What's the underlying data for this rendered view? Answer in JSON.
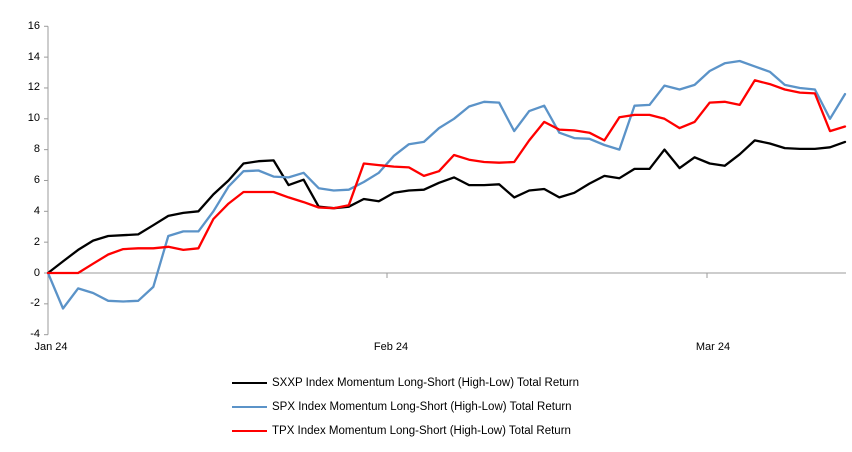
{
  "chart_data": {
    "type": "line",
    "title": "",
    "x_tick_labels": [
      "Jan 24",
      "Feb 24",
      "Mar 24"
    ],
    "y_ticks": [
      16,
      14,
      12,
      10,
      8,
      6,
      4,
      2,
      0,
      "-2",
      "-4"
    ],
    "ylim": [
      -4,
      16
    ],
    "grid": "zero-line-only",
    "legend_position": "bottom",
    "axis_color": "#9B9B9B",
    "background": "#FFFFFF",
    "series": [
      {
        "name": "SXXP Index Momentum Long-Short (High-Low) Total Return",
        "short": "sxxp",
        "color": "#000000",
        "values": [
          0,
          0.75,
          1.5,
          2.1,
          2.4,
          2.45,
          2.5,
          3.1,
          3.7,
          3.9,
          4.0,
          5.1,
          6.0,
          7.1,
          7.25,
          7.3,
          5.7,
          6.05,
          4.3,
          4.2,
          4.3,
          4.8,
          4.65,
          5.2,
          5.35,
          5.4,
          5.85,
          6.2,
          5.7,
          5.7,
          5.75,
          4.9,
          5.35,
          5.45,
          4.9,
          5.2,
          5.8,
          6.3,
          6.15,
          6.75,
          6.75,
          8.0,
          6.8,
          7.5,
          7.1,
          6.95,
          7.7,
          8.6,
          8.4,
          8.1,
          8.05,
          8.05,
          8.15,
          8.5
        ]
      },
      {
        "name": "SPX Index Momentum Long-Short (High-Low) Total Return",
        "short": "spx",
        "color": "#5B93C8",
        "values": [
          0,
          -2.3,
          -1.0,
          -1.3,
          -1.8,
          -1.85,
          -1.8,
          -0.9,
          2.4,
          2.7,
          2.7,
          4.0,
          5.6,
          6.6,
          6.65,
          6.25,
          6.2,
          6.5,
          5.5,
          5.35,
          5.4,
          5.9,
          6.5,
          7.6,
          8.35,
          8.5,
          9.4,
          10.0,
          10.8,
          11.1,
          11.05,
          9.2,
          10.5,
          10.85,
          9.1,
          8.75,
          8.7,
          8.3,
          8.0,
          10.85,
          10.9,
          12.15,
          11.9,
          12.2,
          13.1,
          13.6,
          13.75,
          13.4,
          13.05,
          12.2,
          12.0,
          11.9,
          10.0,
          11.6
        ]
      },
      {
        "name": "TPX Index Momentum Long-Short (High-Low) Total Return",
        "short": "tpx",
        "color": "#FF0000",
        "values": [
          0,
          0,
          0,
          0.6,
          1.2,
          1.55,
          1.6,
          1.6,
          1.7,
          1.5,
          1.6,
          3.5,
          4.5,
          5.25,
          5.25,
          5.25,
          4.9,
          4.6,
          4.25,
          4.2,
          4.4,
          7.1,
          7.0,
          6.9,
          6.85,
          6.3,
          6.6,
          7.65,
          7.35,
          7.2,
          7.15,
          7.2,
          8.6,
          9.8,
          9.3,
          9.25,
          9.1,
          8.6,
          10.1,
          10.25,
          10.25,
          10.0,
          9.4,
          9.8,
          11.05,
          11.1,
          10.9,
          12.5,
          12.25,
          11.9,
          11.7,
          11.65,
          9.2,
          9.5
        ]
      }
    ]
  }
}
